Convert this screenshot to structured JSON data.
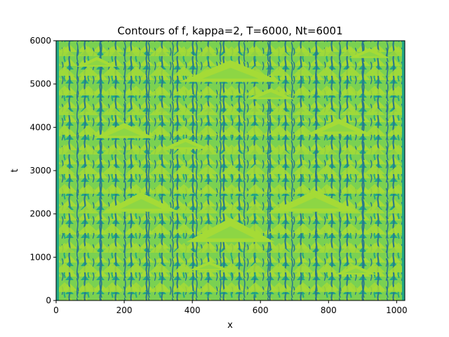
{
  "chart_data": {
    "type": "heatmap",
    "title": "Contours of f, kappa=2, T=6000, Nt=6001",
    "xlabel": "x",
    "ylabel": "t",
    "xlim": [
      0,
      1024
    ],
    "ylim": [
      0,
      6000
    ],
    "x_ticks": [
      0,
      200,
      400,
      600,
      800,
      1000
    ],
    "y_ticks": [
      0,
      1000,
      2000,
      3000,
      4000,
      5000,
      6000
    ],
    "grid": false,
    "colormap": "viridis",
    "contour_levels": [
      "#2a788e",
      "#22a884",
      "#7ad151",
      "#a5db36"
    ],
    "large_triangles": [
      {
        "x": 512,
        "t": 1350,
        "half_width": 130,
        "height": 560
      },
      {
        "x": 512,
        "t": 5050,
        "half_width": 150,
        "height": 500
      },
      {
        "x": 760,
        "t": 2050,
        "half_width": 130,
        "height": 500
      },
      {
        "x": 250,
        "t": 2050,
        "half_width": 110,
        "height": 450
      },
      {
        "x": 200,
        "t": 3750,
        "half_width": 90,
        "height": 350
      },
      {
        "x": 830,
        "t": 3850,
        "half_width": 90,
        "height": 350
      },
      {
        "x": 380,
        "t": 3500,
        "half_width": 70,
        "height": 250
      },
      {
        "x": 630,
        "t": 4650,
        "half_width": 70,
        "height": 250
      },
      {
        "x": 120,
        "t": 5400,
        "half_width": 60,
        "height": 230
      },
      {
        "x": 920,
        "t": 5600,
        "half_width": 60,
        "height": 230
      },
      {
        "x": 450,
        "t": 700,
        "half_width": 60,
        "height": 200
      },
      {
        "x": 880,
        "t": 600,
        "half_width": 60,
        "height": 220
      }
    ]
  }
}
